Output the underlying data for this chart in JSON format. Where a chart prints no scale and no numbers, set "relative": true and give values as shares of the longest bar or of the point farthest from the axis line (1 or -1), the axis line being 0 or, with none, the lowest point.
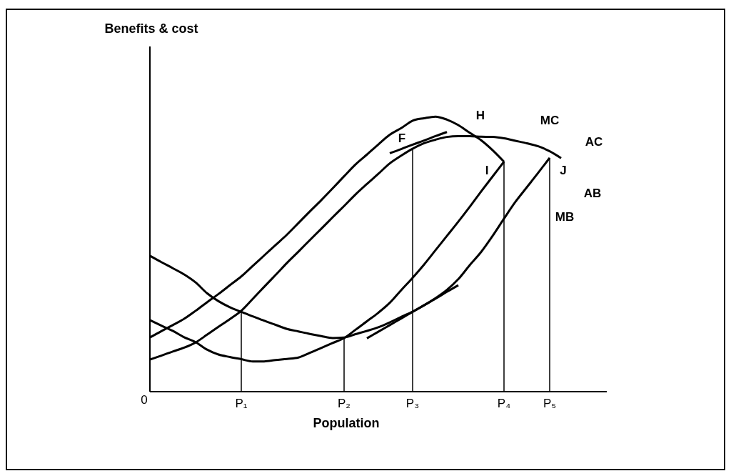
{
  "chart_data": {
    "type": "line",
    "relative": true,
    "xlabel": "Population",
    "categories": [
      null,
      null,
      null,
      null,
      null,
      null,
      null,
      null,
      "P₁",
      null,
      null,
      null,
      null,
      null,
      null,
      null,
      null,
      "P₂",
      null,
      null,
      null,
      null,
      null,
      "P₃",
      null,
      null,
      null,
      null,
      null,
      null,
      null,
      "P₄",
      null,
      null,
      null,
      "P₅",
      null,
      null,
      null,
      null,
      null
    ],
    "grid": false,
    "marker": "none",
    "line_style": "solid",
    "series": [
      {
        "color": "#000000",
        "values": [
          0.197,
          0.22,
          0.242,
          0.265,
          0.294,
          0.325,
          0.355,
          0.387,
          0.419,
          0.457,
          0.495,
          0.533,
          0.571,
          0.613,
          0.655,
          0.696,
          0.739,
          0.783,
          0.826,
          0.862,
          0.899,
          0.934,
          0.958,
          0.985,
          0.994,
          1,
          0.989,
          0.969,
          0.941,
          0.914,
          0.878,
          0.836,
          null,
          null,
          null,
          null,
          null,
          null,
          null,
          null,
          null
        ]
      },
      {
        "color": "#000000",
        "values": [
          0.117,
          0.131,
          0.146,
          0.16,
          0.179,
          0.207,
          0.236,
          0.264,
          0.294,
          0.337,
          0.381,
          0.424,
          0.468,
          0.509,
          0.551,
          0.592,
          0.634,
          0.675,
          0.717,
          0.755,
          0.792,
          0.83,
          0.858,
          0.883,
          0.903,
          0.916,
          0.926,
          0.929,
          0.929,
          0.927,
          0.926,
          0.921,
          0.912,
          0.903,
          0.892,
          0.874,
          0.849,
          null,
          null,
          null,
          null
        ]
      },
      {
        "color": "#000000",
        "values": [
          0.494,
          0.471,
          0.449,
          0.426,
          0.397,
          0.358,
          0.329,
          0.307,
          0.29,
          0.274,
          0.258,
          0.243,
          0.228,
          0.219,
          0.21,
          0.202,
          0.195,
          0.197,
          0.209,
          0.221,
          0.234,
          0.252,
          0.272,
          0.291,
          0.314,
          0.34,
          0.37,
          0.409,
          0.46,
          0.508,
          0.566,
          0.629,
          0.69,
          0.743,
          0.796,
          0.85,
          null,
          null,
          null,
          null,
          null
        ]
      },
      {
        "color": "#000000",
        "values": [
          0.26,
          0.24,
          0.221,
          0.198,
          0.18,
          0.153,
          0.135,
          0.126,
          0.118,
          0.11,
          0.11,
          0.115,
          0.119,
          0.124,
          0.141,
          0.159,
          0.177,
          0.195,
          0.225,
          0.256,
          0.287,
          0.323,
          0.369,
          0.414,
          0.462,
          0.514,
          0.566,
          0.618,
          0.672,
          0.728,
          0.782,
          0.836,
          null,
          null,
          null,
          null,
          null,
          null,
          null,
          null,
          null
        ]
      },
      {
        "color": "#000000",
        "values": [
          null,
          null,
          null,
          null,
          null,
          null,
          null,
          null,
          null,
          null,
          null,
          null,
          null,
          null,
          null,
          null,
          null,
          null,
          null,
          null,
          null,
          0.867,
          0.882,
          0.898,
          0.913,
          0.929,
          0.944,
          null,
          null,
          null,
          null,
          null,
          null,
          null,
          null,
          null,
          null,
          null,
          null,
          null,
          null
        ]
      },
      {
        "color": "#000000",
        "values": [
          null,
          null,
          null,
          null,
          null,
          null,
          null,
          null,
          null,
          null,
          null,
          null,
          null,
          null,
          null,
          null,
          null,
          null,
          null,
          0.194,
          0.218,
          0.242,
          0.266,
          0.29,
          0.314,
          0.338,
          0.363,
          0.387,
          null,
          null,
          null,
          null,
          null,
          null,
          null,
          null,
          null,
          null,
          null,
          null,
          null
        ]
      },
      {
        "type": "bar",
        "color": "#000000",
        "values": [
          null,
          null,
          null,
          null,
          null,
          null,
          null,
          null,
          0.291,
          null,
          null,
          null,
          null,
          null,
          null,
          null,
          null,
          0.197,
          null,
          null,
          null,
          null,
          null,
          0.883,
          null,
          null,
          null,
          null,
          null,
          null,
          null,
          0.836,
          null,
          null,
          null,
          0.85,
          null,
          null,
          null,
          null,
          null
        ]
      }
    ],
    "annotations": [
      "H",
      "F",
      "I",
      "J",
      "MC",
      "AC",
      "AB",
      "MB",
      "Benefits & cost",
      "0"
    ]
  }
}
